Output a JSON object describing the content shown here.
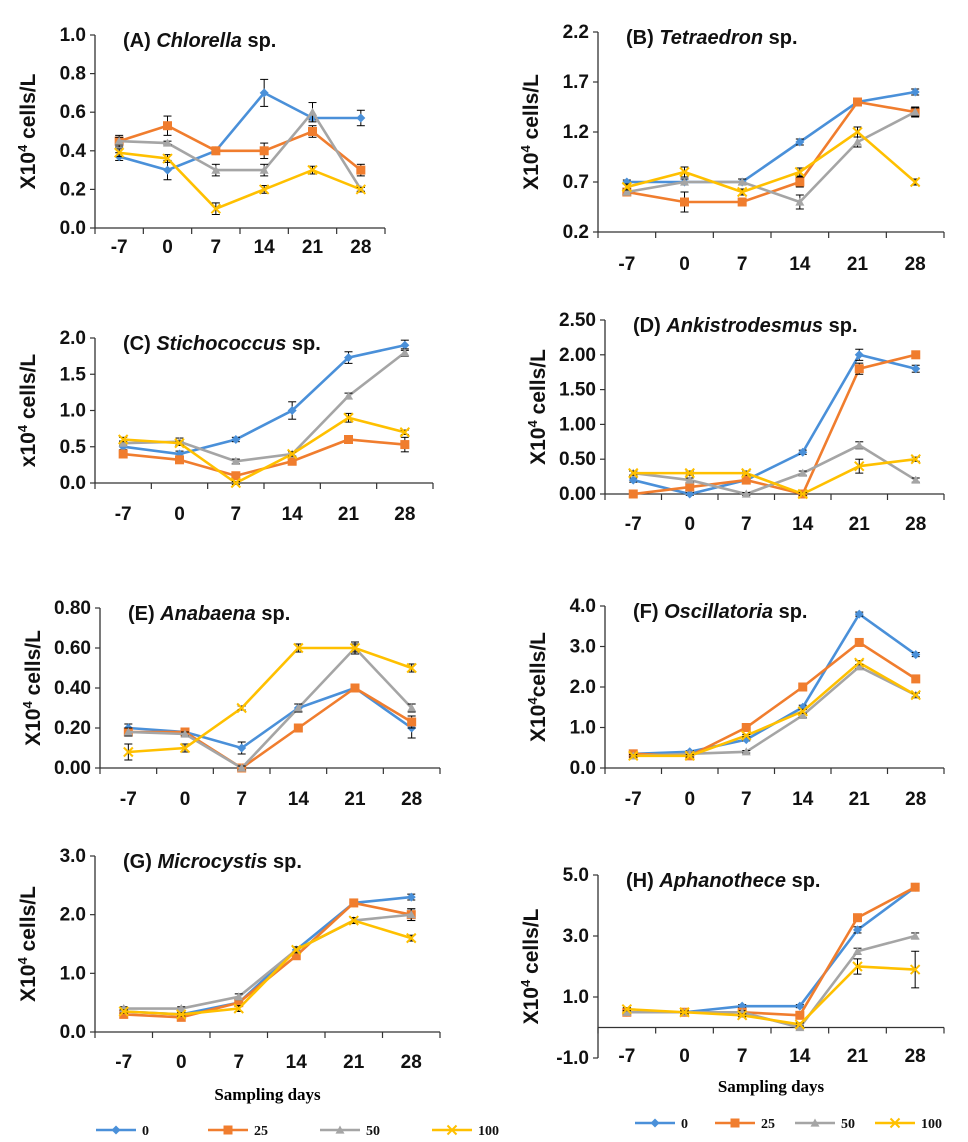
{
  "chart_data": [
    {
      "type": "line",
      "title_prefix": "(A) ",
      "title_italic": "Chlorella",
      "title_suffix": " sp.",
      "ylabel": "X10",
      "ylabel_sup": "4",
      "ylabel_rest": " cells/L",
      "categories": [
        "-7",
        "0",
        "7",
        "14",
        "21",
        "28"
      ],
      "ylim": [
        0.0,
        1.0
      ],
      "yticks": [
        "0.0",
        "0.2",
        "0.4",
        "0.6",
        "0.8",
        "1.0"
      ],
      "series": [
        {
          "name": "0",
          "values": [
            0.37,
            0.3,
            0.4,
            0.7,
            0.57,
            0.57
          ],
          "errors": [
            0.02,
            0.05,
            0.01,
            0.07,
            0.01,
            0.04
          ]
        },
        {
          "name": "25",
          "values": [
            0.45,
            0.53,
            0.4,
            0.4,
            0.5,
            0.3
          ],
          "errors": [
            0.03,
            0.05,
            0.01,
            0.04,
            0.03,
            0.03
          ]
        },
        {
          "name": "50",
          "values": [
            0.45,
            0.44,
            0.3,
            0.3,
            0.6,
            0.2
          ],
          "errors": [
            0.02,
            0.01,
            0.03,
            0.03,
            0.05,
            0.01
          ]
        },
        {
          "name": "100",
          "values": [
            0.39,
            0.36,
            0.1,
            0.2,
            0.3,
            0.2
          ],
          "errors": [
            0.02,
            0.02,
            0.03,
            0.02,
            0.02,
            0.01
          ]
        }
      ]
    },
    {
      "type": "line",
      "title_prefix": "(B) ",
      "title_italic": "Tetraedron",
      "title_suffix": " sp.",
      "ylabel": "X10",
      "ylabel_sup": "4",
      "ylabel_rest": " cells/L",
      "categories": [
        "-7",
        "0",
        "7",
        "14",
        "21",
        "28"
      ],
      "ylim": [
        0.2,
        2.2
      ],
      "yticks": [
        "0.2",
        "0.7",
        "1.2",
        "1.7",
        "2.2"
      ],
      "series": [
        {
          "name": "0",
          "values": [
            0.7,
            0.7,
            0.7,
            1.1,
            1.5,
            1.6
          ],
          "errors": [
            0.02,
            0.03,
            0.03,
            0.03,
            0.03,
            0.03
          ]
        },
        {
          "name": "25",
          "values": [
            0.6,
            0.5,
            0.5,
            0.7,
            1.5,
            1.4
          ],
          "errors": [
            0.03,
            0.1,
            0.03,
            0.05,
            0.03,
            0.05
          ]
        },
        {
          "name": "50",
          "values": [
            0.6,
            0.7,
            0.7,
            0.5,
            1.1,
            1.4
          ],
          "errors": [
            0.03,
            0.03,
            0.03,
            0.07,
            0.05,
            0.04
          ]
        },
        {
          "name": "100",
          "values": [
            0.65,
            0.8,
            0.6,
            0.8,
            1.2,
            0.7
          ],
          "errors": [
            0.03,
            0.05,
            0.03,
            0.04,
            0.05,
            0.03
          ]
        }
      ]
    },
    {
      "type": "line",
      "title_prefix": "(C) ",
      "title_italic": "Stichococcus",
      "title_suffix": " sp.",
      "ylabel": "x10",
      "ylabel_sup": "4",
      "ylabel_rest": " cells/L",
      "categories": [
        "-7",
        "0",
        "7",
        "14",
        "21",
        "28"
      ],
      "ylim": [
        0.0,
        2.0
      ],
      "yticks": [
        "0.0",
        "0.5",
        "1.0",
        "1.5",
        "2.0"
      ],
      "series": [
        {
          "name": "0",
          "values": [
            0.5,
            0.4,
            0.6,
            1.0,
            1.73,
            1.9
          ],
          "errors": [
            0.04,
            0.04,
            0.03,
            0.12,
            0.08,
            0.07
          ]
        },
        {
          "name": "25",
          "values": [
            0.4,
            0.32,
            0.1,
            0.3,
            0.6,
            0.53
          ],
          "errors": [
            0.05,
            0.05,
            0.05,
            0.04,
            0.04,
            0.1
          ]
        },
        {
          "name": "50",
          "values": [
            0.55,
            0.57,
            0.3,
            0.4,
            1.2,
            1.8
          ],
          "errors": [
            0.03,
            0.05,
            0.03,
            0.03,
            0.04,
            0.05
          ]
        },
        {
          "name": "100",
          "values": [
            0.6,
            0.55,
            0.0,
            0.4,
            0.9,
            0.7
          ],
          "errors": [
            0.03,
            0.03,
            0.02,
            0.03,
            0.06,
            0.03
          ]
        }
      ]
    },
    {
      "type": "line",
      "title_prefix": "(D) ",
      "title_italic": "Ankistrodesmus",
      "title_suffix": " sp.",
      "ylabel": "X10",
      "ylabel_sup": "4",
      "ylabel_rest": " cells/L",
      "categories": [
        "-7",
        "0",
        "7",
        "14",
        "21",
        "28"
      ],
      "ylim": [
        0.0,
        2.5
      ],
      "yticks": [
        "0.00",
        "0.50",
        "1.00",
        "1.50",
        "2.00",
        "2.50"
      ],
      "series": [
        {
          "name": "0",
          "values": [
            0.2,
            0.0,
            0.2,
            0.6,
            2.0,
            1.8
          ],
          "errors": [
            0.03,
            0.02,
            0.03,
            0.03,
            0.08,
            0.05
          ]
        },
        {
          "name": "25",
          "values": [
            0.0,
            0.1,
            0.2,
            0.0,
            1.8,
            2.0
          ],
          "errors": [
            0.02,
            0.02,
            0.03,
            0.02,
            0.08,
            0.05
          ]
        },
        {
          "name": "50",
          "values": [
            0.3,
            0.2,
            0.0,
            0.3,
            0.7,
            0.2
          ],
          "errors": [
            0.03,
            0.03,
            0.02,
            0.03,
            0.05,
            0.03
          ]
        },
        {
          "name": "100",
          "values": [
            0.3,
            0.3,
            0.3,
            0.0,
            0.4,
            0.5
          ],
          "errors": [
            0.03,
            0.03,
            0.03,
            0.02,
            0.1,
            0.03
          ]
        }
      ]
    },
    {
      "type": "line",
      "title_prefix": "(E) ",
      "title_italic": "Anabaena",
      "title_suffix": " sp.",
      "ylabel": "X10",
      "ylabel_sup": "4",
      "ylabel_rest": " cells/L",
      "categories": [
        "-7",
        "0",
        "7",
        "14",
        "21",
        "28"
      ],
      "ylim": [
        0.0,
        0.8
      ],
      "yticks": [
        "0.00",
        "0.20",
        "0.40",
        "0.60",
        "0.80"
      ],
      "series": [
        {
          "name": "0",
          "values": [
            0.2,
            0.18,
            0.1,
            0.3,
            0.4,
            0.2
          ],
          "errors": [
            0.02,
            0.01,
            0.03,
            0.02,
            0.02,
            0.05
          ]
        },
        {
          "name": "25",
          "values": [
            0.18,
            0.18,
            0.0,
            0.2,
            0.4,
            0.23
          ],
          "errors": [
            0.02,
            0.01,
            0.01,
            0.01,
            0.01,
            0.03
          ]
        },
        {
          "name": "50",
          "values": [
            0.18,
            0.17,
            0.0,
            0.3,
            0.6,
            0.3
          ],
          "errors": [
            0.02,
            0.01,
            0.01,
            0.02,
            0.03,
            0.02
          ]
        },
        {
          "name": "100",
          "values": [
            0.08,
            0.1,
            0.3,
            0.6,
            0.6,
            0.5
          ],
          "errors": [
            0.04,
            0.02,
            0.01,
            0.02,
            0.02,
            0.02
          ]
        }
      ]
    },
    {
      "type": "line",
      "title_prefix": "(F) ",
      "title_italic": "Oscillatoria",
      "title_suffix": " sp.",
      "ylabel": "X10",
      "ylabel_sup": "4",
      "ylabel_rest": "cells/L",
      "categories": [
        "-7",
        "0",
        "7",
        "14",
        "21",
        "28"
      ],
      "ylim": [
        0.0,
        4.0
      ],
      "yticks": [
        "0.0",
        "1.0",
        "2.0",
        "3.0",
        "4.0"
      ],
      "series": [
        {
          "name": "0",
          "values": [
            0.35,
            0.4,
            0.7,
            1.5,
            3.8,
            2.8
          ],
          "errors": [
            0.03,
            0.03,
            0.03,
            0.05,
            0.05,
            0.05
          ]
        },
        {
          "name": "25",
          "values": [
            0.35,
            0.3,
            1.0,
            2.0,
            3.1,
            2.2
          ],
          "errors": [
            0.03,
            0.03,
            0.03,
            0.05,
            0.05,
            0.05
          ]
        },
        {
          "name": "50",
          "values": [
            0.3,
            0.35,
            0.4,
            1.3,
            2.5,
            1.8
          ],
          "errors": [
            0.03,
            0.03,
            0.03,
            0.05,
            0.05,
            0.05
          ]
        },
        {
          "name": "100",
          "values": [
            0.3,
            0.3,
            0.8,
            1.4,
            2.6,
            1.8
          ],
          "errors": [
            0.03,
            0.03,
            0.03,
            0.05,
            0.05,
            0.05
          ]
        }
      ]
    },
    {
      "type": "line",
      "title_prefix": "(G) ",
      "title_italic": "Microcystis",
      "title_suffix": " sp.",
      "ylabel": "X10",
      "ylabel_sup": "4",
      "ylabel_rest": " cells/L",
      "xlabel": "Sampling days",
      "categories": [
        "-7",
        "0",
        "7",
        "14",
        "21",
        "28"
      ],
      "ylim": [
        0.0,
        3.0
      ],
      "yticks": [
        "0.0",
        "1.0",
        "2.0",
        "3.0"
      ],
      "series": [
        {
          "name": "0",
          "values": [
            0.35,
            0.3,
            0.5,
            1.4,
            2.2,
            2.3
          ],
          "errors": [
            0.03,
            0.03,
            0.05,
            0.05,
            0.05,
            0.05
          ]
        },
        {
          "name": "25",
          "values": [
            0.3,
            0.25,
            0.5,
            1.3,
            2.2,
            2.0
          ],
          "errors": [
            0.03,
            0.03,
            0.05,
            0.05,
            0.05,
            0.1
          ]
        },
        {
          "name": "50",
          "values": [
            0.4,
            0.4,
            0.6,
            1.4,
            1.9,
            2.0
          ],
          "errors": [
            0.03,
            0.03,
            0.05,
            0.05,
            0.05,
            0.1
          ]
        },
        {
          "name": "100",
          "values": [
            0.35,
            0.3,
            0.4,
            1.4,
            1.9,
            1.6
          ],
          "errors": [
            0.03,
            0.03,
            0.05,
            0.05,
            0.05,
            0.05
          ]
        }
      ]
    },
    {
      "type": "line",
      "title_prefix": "(H) ",
      "title_italic": "Aphanothece",
      "title_suffix": " sp.",
      "ylabel": "X10",
      "ylabel_sup": "4",
      "ylabel_rest": " cells/L",
      "xlabel": "Sampling days",
      "categories": [
        "-7",
        "0",
        "7",
        "14",
        "21",
        "28"
      ],
      "ylim": [
        -1.0,
        5.0
      ],
      "yticks": [
        "-1.0",
        "1.0",
        "3.0",
        "5.0"
      ],
      "series": [
        {
          "name": "0",
          "values": [
            0.5,
            0.5,
            0.7,
            0.7,
            3.2,
            4.6
          ],
          "errors": [
            0.05,
            0.05,
            0.05,
            0.05,
            0.1,
            0.1
          ]
        },
        {
          "name": "25",
          "values": [
            0.5,
            0.5,
            0.5,
            0.4,
            3.6,
            4.6
          ],
          "errors": [
            0.05,
            0.05,
            0.05,
            0.05,
            0.1,
            0.1
          ]
        },
        {
          "name": "50",
          "values": [
            0.5,
            0.5,
            0.5,
            0.0,
            2.5,
            3.0
          ],
          "errors": [
            0.05,
            0.05,
            0.05,
            0.05,
            0.1,
            0.1
          ]
        },
        {
          "name": "100",
          "values": [
            0.6,
            0.5,
            0.4,
            0.1,
            2.0,
            1.9
          ],
          "errors": [
            0.05,
            0.05,
            0.05,
            0.05,
            0.25,
            0.6
          ]
        }
      ]
    }
  ],
  "legend": [
    {
      "name": "0",
      "color": "#4A90D9",
      "marker": "diamond"
    },
    {
      "name": "25",
      "color": "#F07D2E",
      "marker": "square"
    },
    {
      "name": "50",
      "color": "#A5A5A5",
      "marker": "triangle"
    },
    {
      "name": "100",
      "color": "#FFC000",
      "marker": "x"
    }
  ]
}
